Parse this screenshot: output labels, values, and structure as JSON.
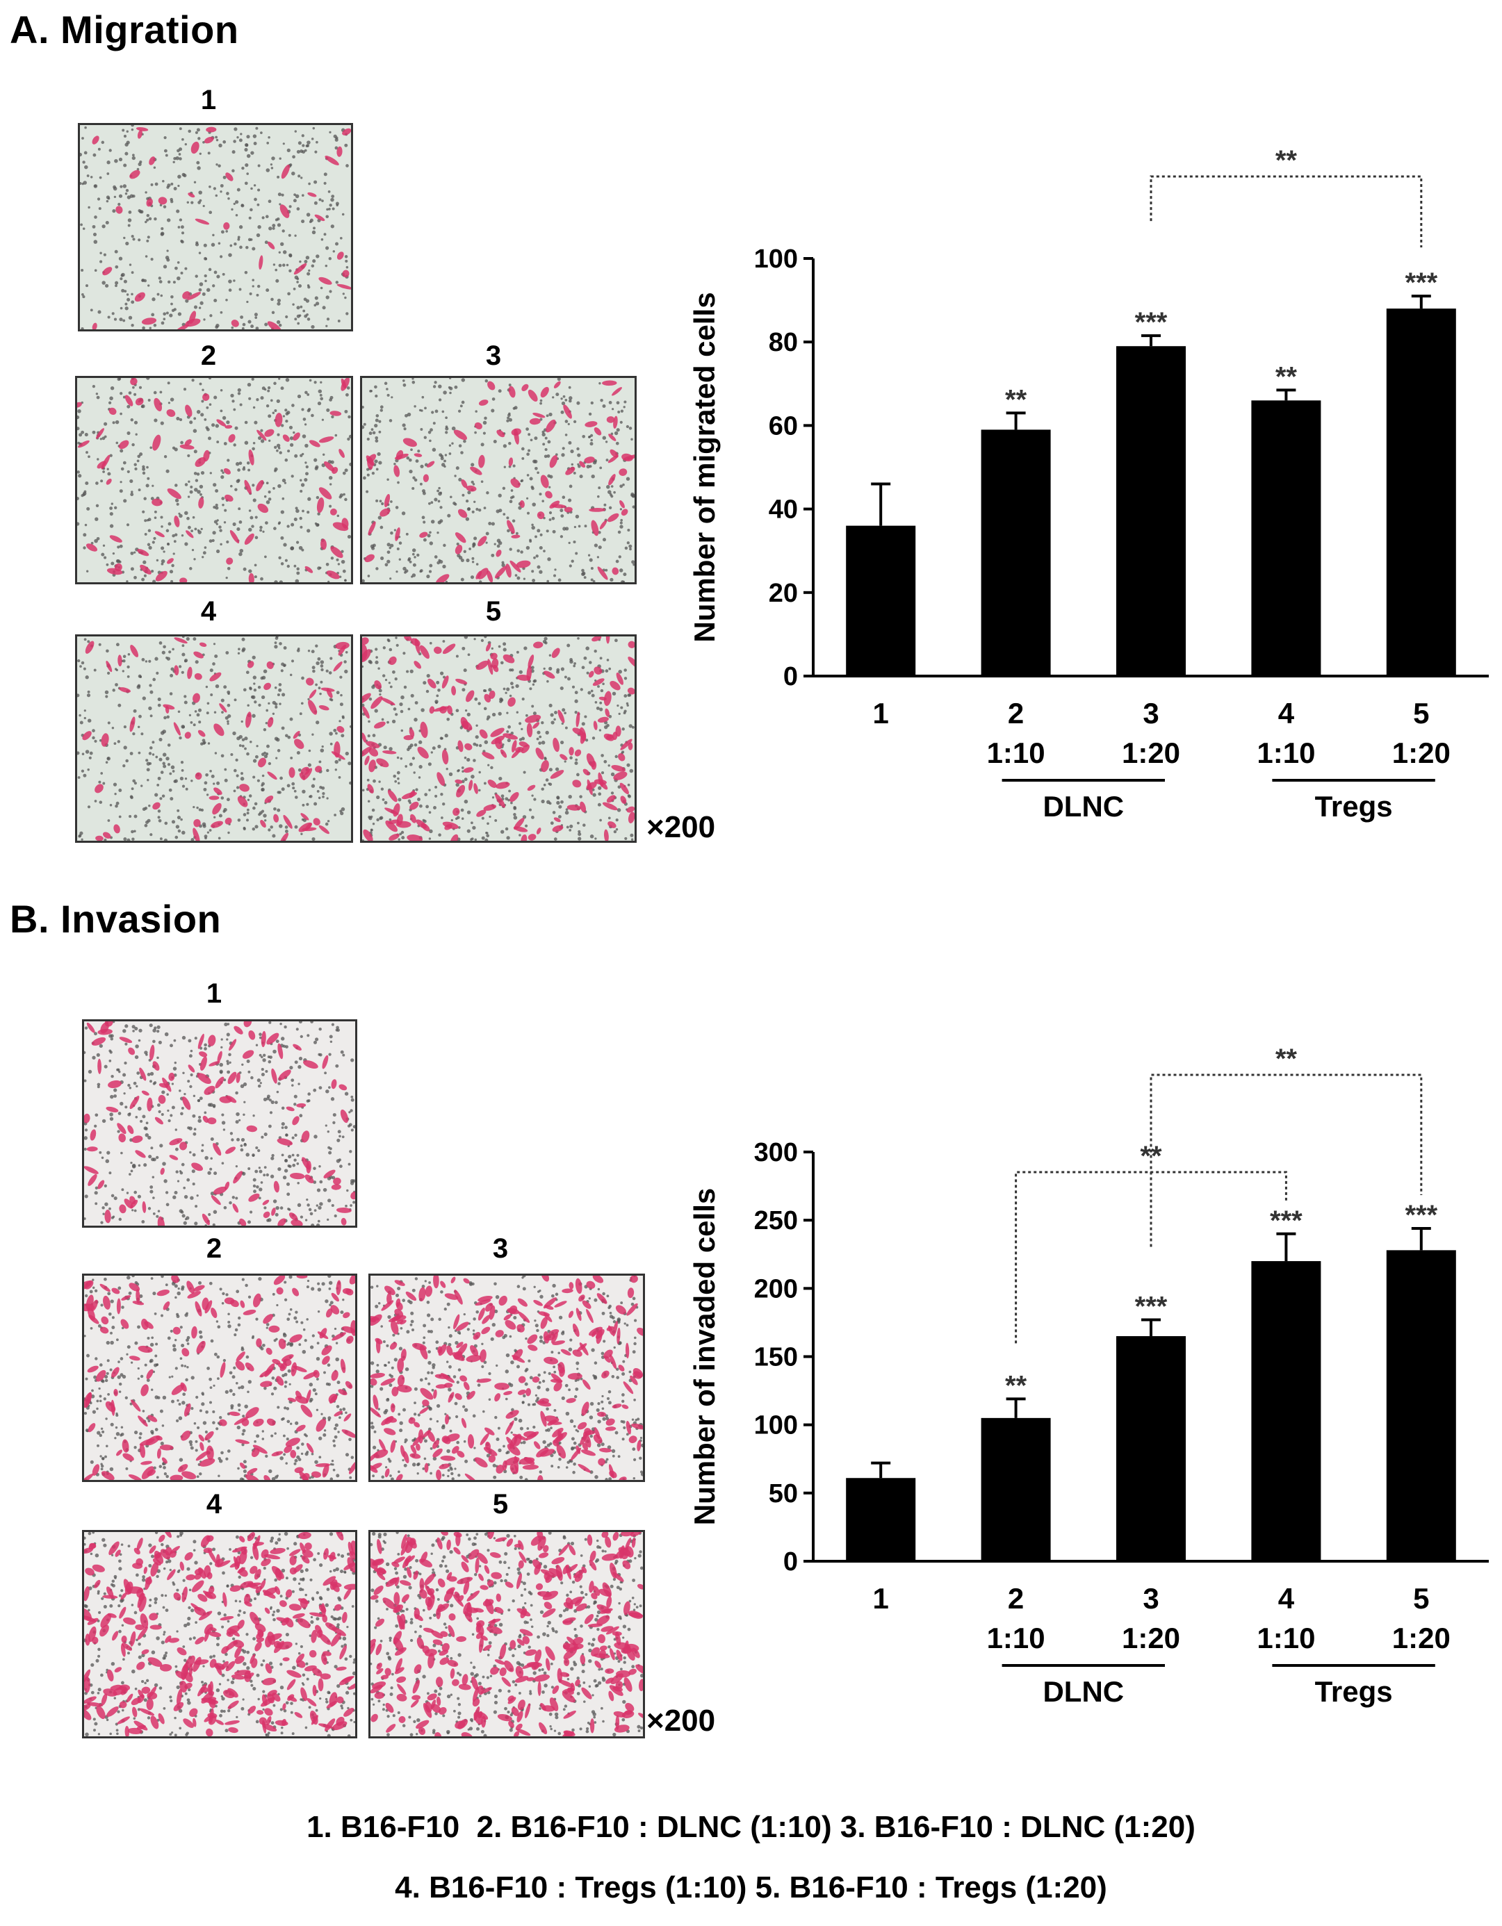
{
  "panels": {
    "a": {
      "title": "A. Migration",
      "magnification": "×200",
      "image_labels": [
        "1",
        "2",
        "3",
        "4",
        "5"
      ]
    },
    "b": {
      "title": "B. Invasion",
      "magnification": "×200",
      "image_labels": [
        "1",
        "2",
        "3",
        "4",
        "5"
      ]
    }
  },
  "legend": {
    "line1": [
      "1. B16-F10",
      "2. B16-F10 : DLNC (1:10)",
      "3. B16-F10 : DLNC (1:20)"
    ],
    "line2": [
      "4. B16-F10 : Tregs (1:10)",
      "5. B16-F10 : Tregs (1:20)"
    ]
  },
  "colors": {
    "bar": "#000000",
    "cell_stain": "#d8346a",
    "field_a": "#dfe6df",
    "field_b": "#eeeceb"
  },
  "chart_data": [
    {
      "type": "bar",
      "ylabel": "Number of migrated cells",
      "ylim": [
        0,
        100
      ],
      "yticks": [
        0,
        20,
        40,
        60,
        80,
        100
      ],
      "categories": [
        "1",
        "2",
        "3",
        "4",
        "5"
      ],
      "ratios": [
        "",
        "1:10",
        "1:20",
        "1:10",
        "1:20"
      ],
      "groups": [
        {
          "label": "DLNC",
          "from": 1,
          "to": 2
        },
        {
          "label": "Tregs",
          "from": 3,
          "to": 4
        }
      ],
      "values": [
        36,
        59,
        79,
        66,
        88
      ],
      "errors": [
        10,
        4,
        2.5,
        2.5,
        3
      ],
      "stars": [
        "",
        "**",
        "***",
        "**",
        "***"
      ],
      "brackets": [
        {
          "from": 2,
          "to": 4,
          "label": "**"
        }
      ]
    },
    {
      "type": "bar",
      "ylabel": "Number of invaded cells",
      "ylim": [
        0,
        300
      ],
      "yticks": [
        0,
        50,
        100,
        150,
        200,
        250,
        300
      ],
      "categories": [
        "1",
        "2",
        "3",
        "4",
        "5"
      ],
      "ratios": [
        "",
        "1:10",
        "1:20",
        "1:10",
        "1:20"
      ],
      "groups": [
        {
          "label": "DLNC",
          "from": 1,
          "to": 2
        },
        {
          "label": "Tregs",
          "from": 3,
          "to": 4
        }
      ],
      "values": [
        61,
        105,
        165,
        220,
        228
      ],
      "errors": [
        11,
        14,
        12,
        20,
        16
      ],
      "stars": [
        "",
        "**",
        "***",
        "***",
        "***"
      ],
      "brackets": [
        {
          "from": 2,
          "to": 4,
          "label": "**"
        },
        {
          "from": 1,
          "to": 3,
          "label": "**"
        }
      ]
    }
  ]
}
